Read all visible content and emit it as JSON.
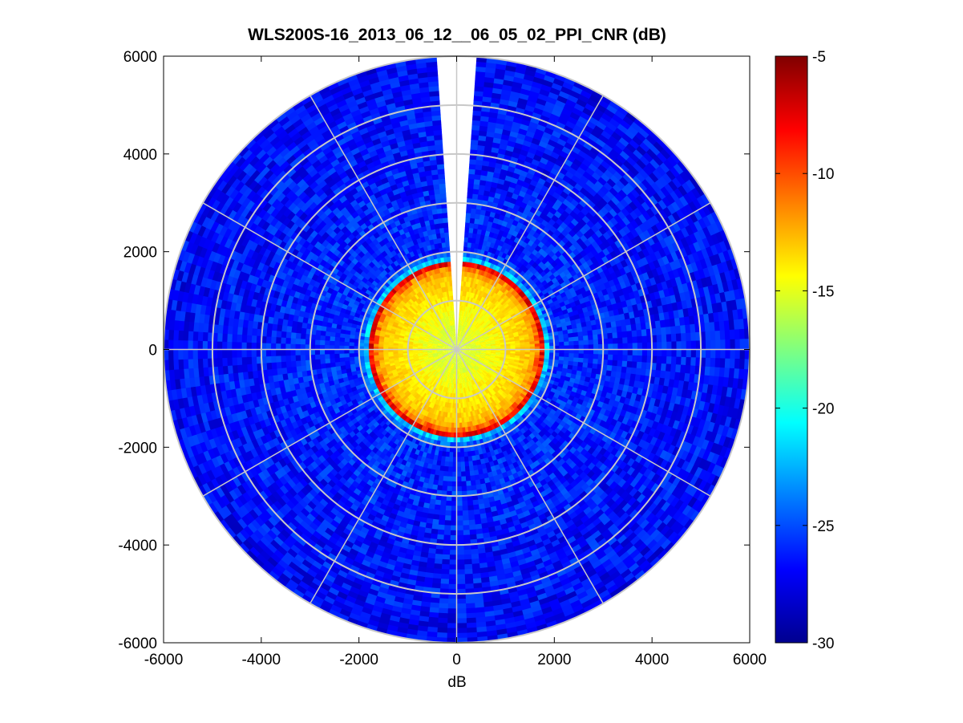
{
  "chart_data": {
    "type": "heatmap",
    "subtype": "polar-ppi",
    "title": "WLS200S-16_2013_06_12__06_05_02_PPI_CNR (dB)",
    "xlabel": "dB",
    "ylabel": "",
    "xlim": [
      -6000,
      6000
    ],
    "ylim": [
      -6000,
      6000
    ],
    "xticks": [
      -6000,
      -4000,
      -2000,
      0,
      2000,
      4000,
      6000
    ],
    "yticks": [
      -6000,
      -4000,
      -2000,
      0,
      2000,
      4000,
      6000
    ],
    "max_range": 6000,
    "range_rings": [
      1000,
      2000,
      3000,
      4000,
      5000,
      6000
    ],
    "spoke_angles_deg": [
      0,
      30,
      60,
      90,
      120,
      150,
      180,
      210,
      240,
      270,
      300,
      330
    ],
    "gap_azimuth_deg": [
      -4,
      4
    ],
    "colormap": "jet",
    "colorbar": {
      "range": [
        -30,
        -5
      ],
      "ticks": [
        -5,
        -10,
        -15,
        -20,
        -25,
        -30
      ]
    },
    "profile": {
      "description_values_dB": "CNR vs range",
      "range_m": [
        0,
        500,
        1000,
        1500,
        1650,
        1750,
        1850,
        2000,
        3000,
        4000,
        5000,
        6000
      ],
      "cnr_dB": [
        -15.5,
        -15,
        -14,
        -13,
        -11,
        -8,
        -22,
        -26,
        -26,
        -26.5,
        -26.5,
        -27
      ]
    },
    "grid": true
  }
}
